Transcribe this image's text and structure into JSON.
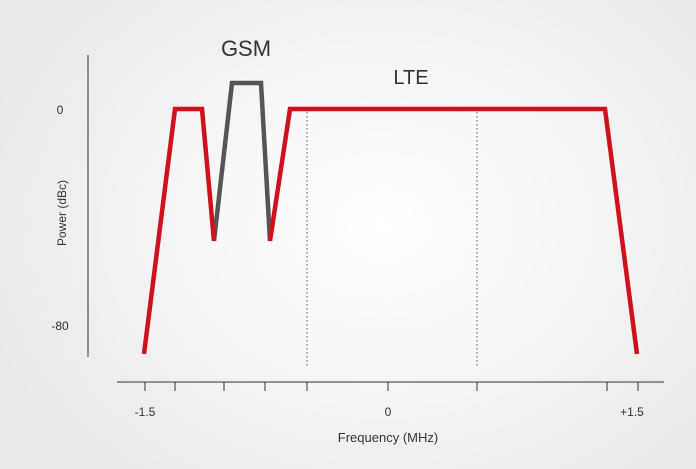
{
  "chart_data": {
    "type": "line",
    "title": "",
    "xlabel": "Frequency (MHz)",
    "ylabel": "Power (dBc)",
    "x_tick_labels": [
      "-1.5",
      "0",
      "+1.5"
    ],
    "y_tick_labels": [
      "0",
      "-80"
    ],
    "annotations": [
      "GSM",
      "LTE"
    ],
    "colors": {
      "lte": "#d0101a",
      "gsm": "#555555",
      "axis": "#333333",
      "guide": "#555555"
    }
  }
}
